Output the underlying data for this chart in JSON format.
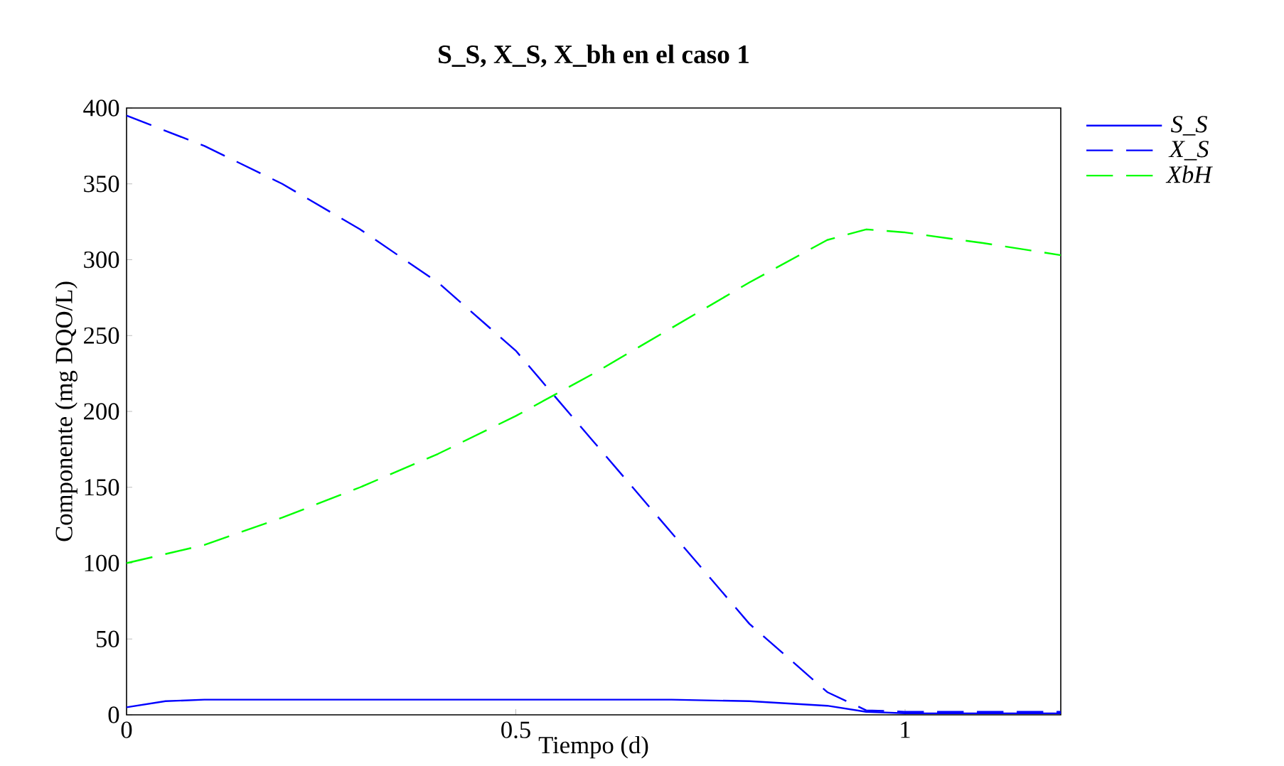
{
  "chart_data": {
    "type": "line",
    "title": "S_S,  X_S, X_bh en el caso 1",
    "xlabel": "Tiempo (d)",
    "ylabel": "Componente (mg DQO/L)",
    "xlim": [
      0,
      1.2
    ],
    "xticks": [
      0,
      0.5,
      1
    ],
    "ylim": [
      0,
      400
    ],
    "yticks": [
      0,
      50,
      100,
      150,
      200,
      250,
      300,
      350,
      400
    ],
    "grid": false,
    "legend": "top right",
    "marker": "none",
    "series": [
      {
        "name": "S_S",
        "color": "#0000ff",
        "line_style": "solid",
        "x": [
          0,
          0.05,
          0.1,
          0.3,
          0.5,
          0.7,
          0.8,
          0.9,
          0.95,
          1.0,
          1.2
        ],
        "values": [
          5,
          9,
          10,
          10,
          10,
          10,
          9,
          6,
          2,
          1,
          1
        ]
      },
      {
        "name": "X_S",
        "color": "#0000ff",
        "line_style": "dashed",
        "x": [
          0,
          0.1,
          0.2,
          0.3,
          0.4,
          0.5,
          0.55,
          0.6,
          0.7,
          0.8,
          0.9,
          0.95,
          1.0,
          1.2
        ],
        "values": [
          395,
          375,
          350,
          320,
          285,
          240,
          210,
          180,
          120,
          60,
          15,
          3,
          2,
          2
        ]
      },
      {
        "name": "XbH",
        "color": "#00ff00",
        "line_style": "dashed",
        "x": [
          0,
          0.1,
          0.2,
          0.3,
          0.4,
          0.5,
          0.6,
          0.7,
          0.8,
          0.9,
          0.95,
          1.0,
          1.1,
          1.2
        ],
        "values": [
          100,
          112,
          130,
          150,
          172,
          197,
          225,
          255,
          285,
          313,
          320,
          318,
          311,
          303
        ]
      }
    ]
  }
}
